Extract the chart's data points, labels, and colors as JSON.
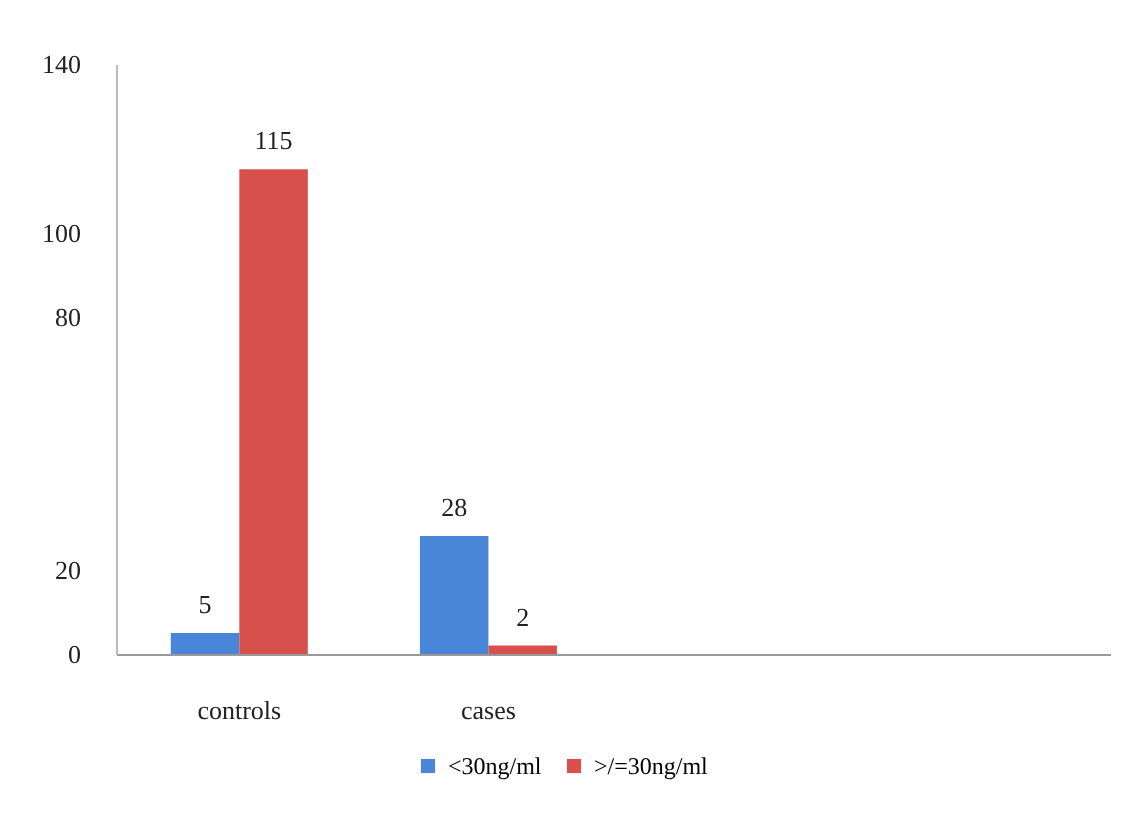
{
  "chart_data": {
    "type": "bar",
    "categories": [
      "controls",
      "cases",
      null,
      null
    ],
    "series": [
      {
        "name": "<30ng/ml",
        "color": "#4a86d8",
        "values": [
          5,
          28,
          null,
          null
        ]
      },
      {
        "name": ">/=30ng/ml",
        "color": "#d8504c",
        "values": [
          115,
          2,
          null,
          null
        ]
      }
    ],
    "ylim": [
      0,
      140
    ],
    "yticks": [
      0,
      20,
      80,
      100,
      140
    ],
    "data_labels": true,
    "legend": "bottom",
    "grid": false
  }
}
